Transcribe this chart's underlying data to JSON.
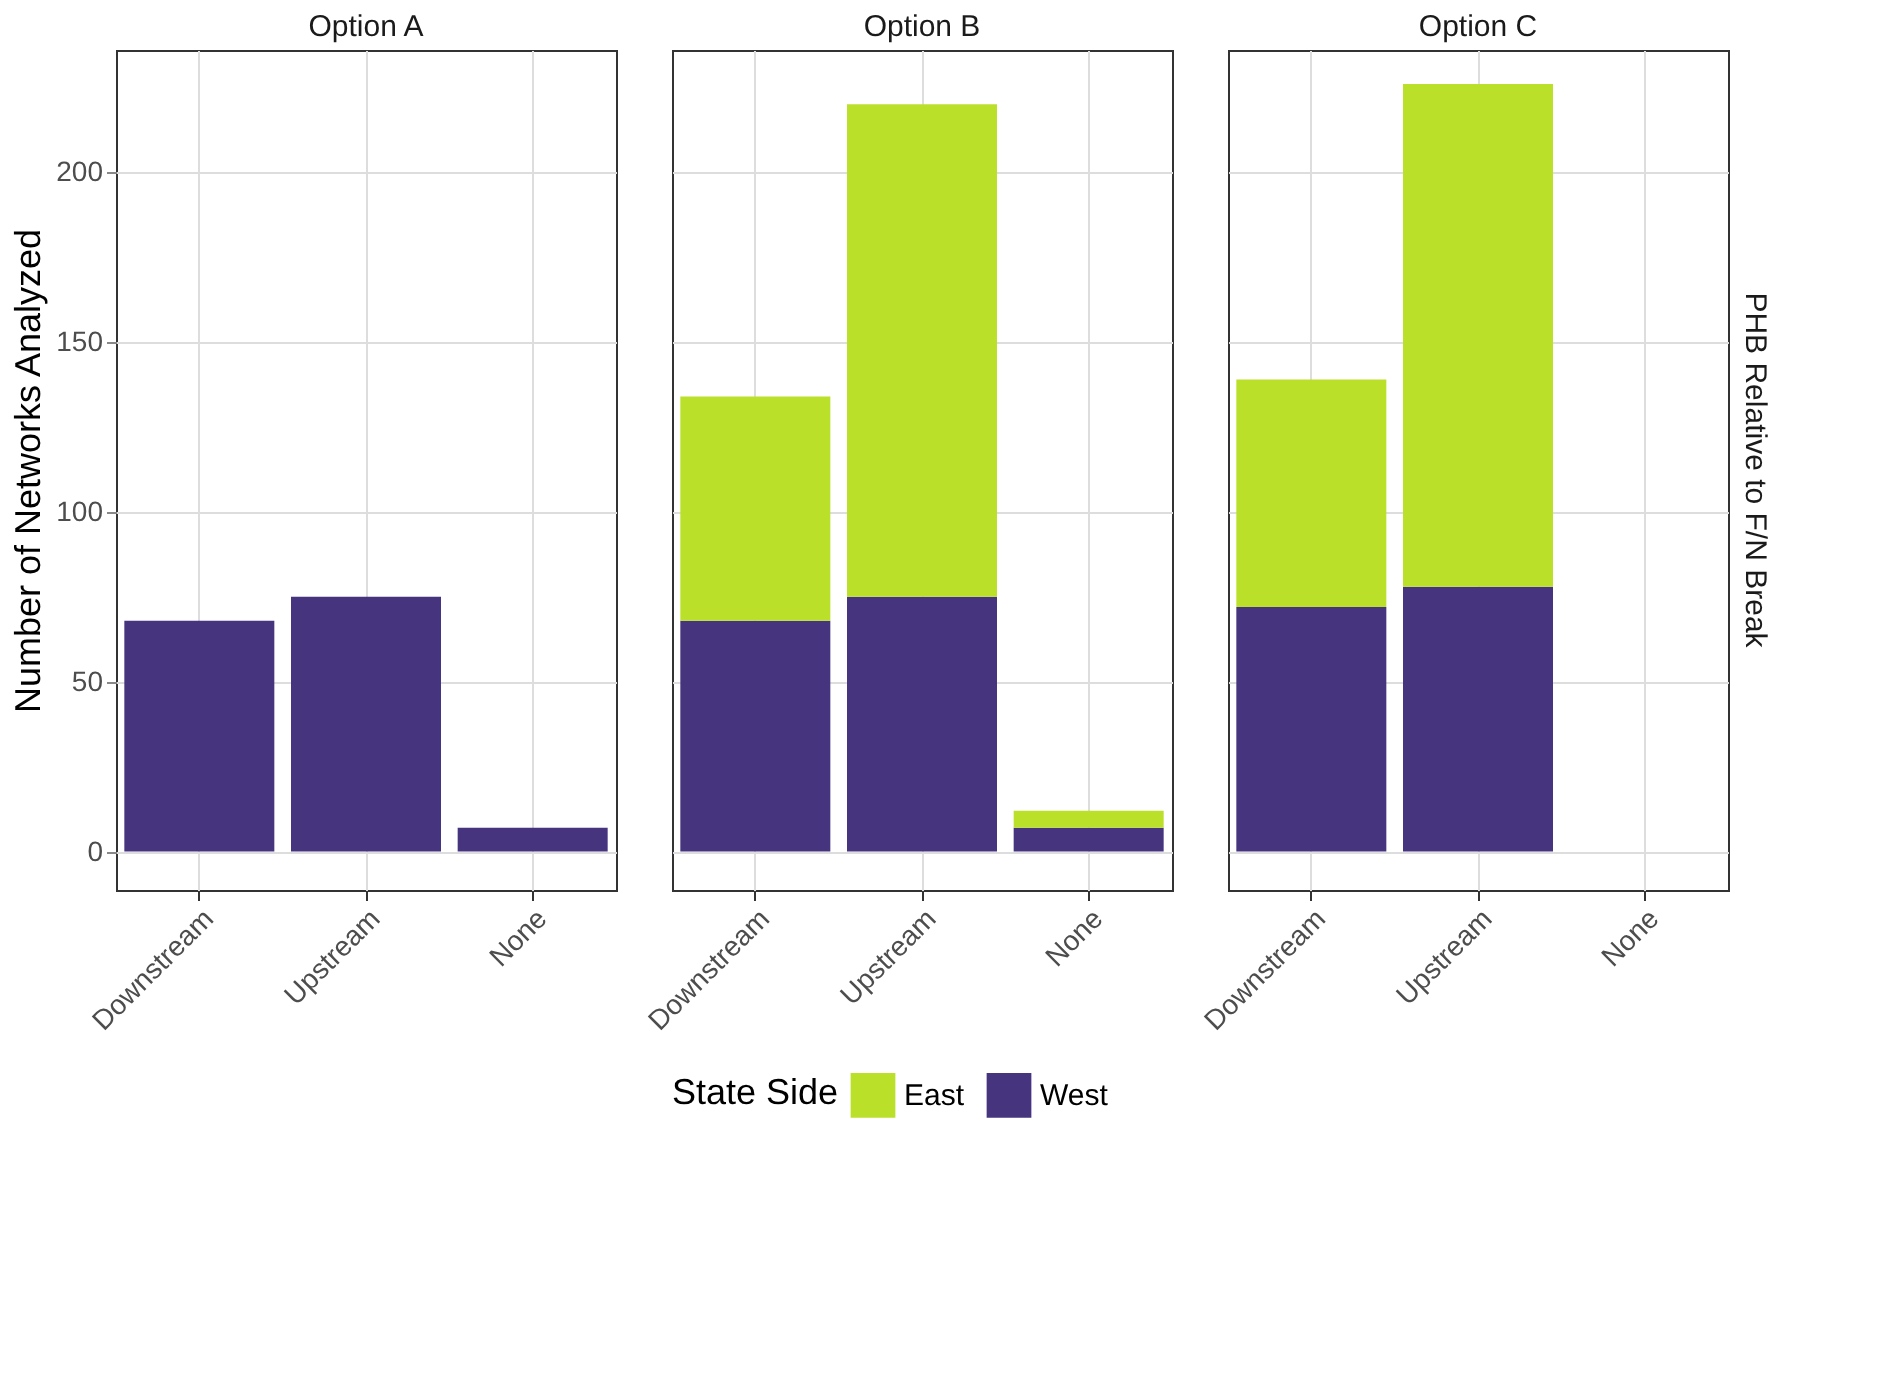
{
  "chart_data": [
    {
      "type": "bar",
      "title": "Option A",
      "ylabel": "Number of Networks Analyzed",
      "categories": [
        "Downstream",
        "Upstream",
        "None"
      ],
      "stacked": true,
      "grid": true,
      "ylim": [
        -11.3,
        236
      ],
      "yticks": [
        0,
        50,
        100,
        150,
        200
      ],
      "series": [
        {
          "color": "#46347f",
          "values": [
            68,
            75,
            7
          ]
        }
      ]
    },
    {
      "type": "bar",
      "title": "Option B",
      "categories": [
        "Downstream",
        "Upstream",
        "None"
      ],
      "stacked": true,
      "legend_title": "State Side",
      "legend": "bottom",
      "grid": true,
      "ylim": [
        -11.3,
        236
      ],
      "yticks": [
        0,
        50,
        100,
        150,
        200
      ],
      "tick_labels": "x",
      "series": [
        {
          "name": "West",
          "color": "#46347f",
          "values": [
            68,
            75,
            7
          ]
        },
        {
          "name": "East",
          "color": "#bbe02a",
          "values": [
            66,
            145,
            5
          ]
        }
      ]
    },
    {
      "type": "bar",
      "title": "Option C",
      "categories": [
        "Downstream",
        "Upstream",
        "None"
      ],
      "stacked": true,
      "grid": true,
      "ylim": [
        -11.3,
        236
      ],
      "yticks": [
        0,
        50,
        100,
        150,
        200
      ],
      "tick_labels": "x",
      "annotations": [
        "PHB Relative to F/N Break"
      ],
      "series": [
        {
          "color": "#46347f",
          "values": [
            72,
            78,
            null
          ]
        },
        {
          "color": "#bbe02a",
          "values": [
            67,
            148,
            null
          ]
        }
      ]
    }
  ]
}
